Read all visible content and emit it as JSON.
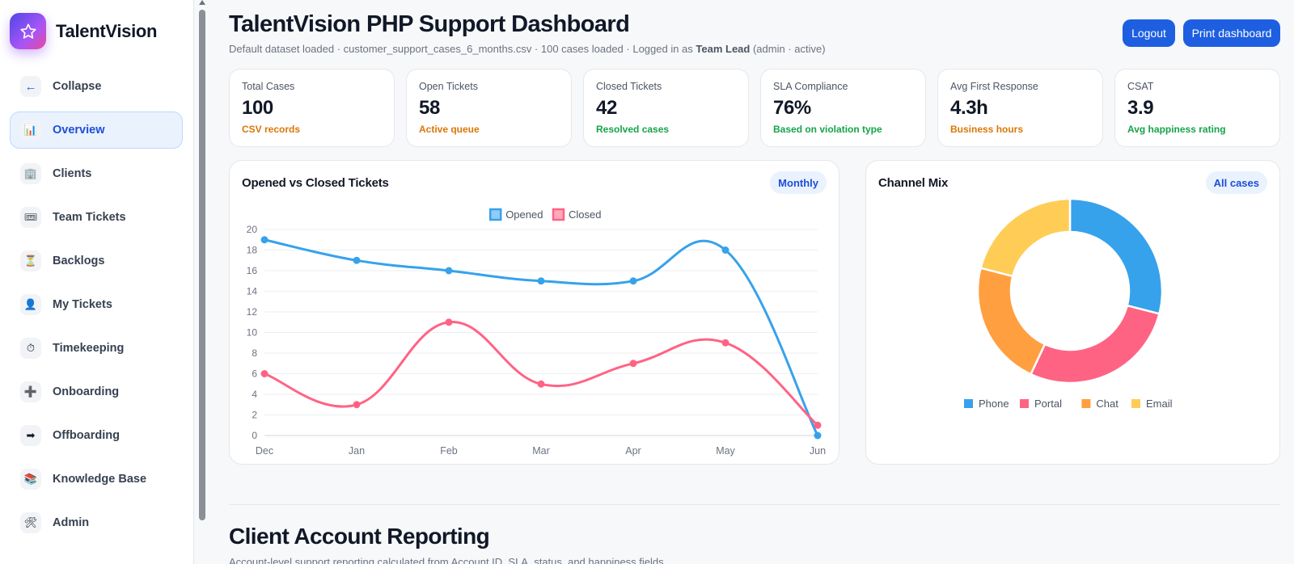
{
  "app": {
    "name": "TalentVision"
  },
  "sidebar": {
    "items": [
      {
        "label": "Collapse",
        "icon": "arrow-left-icon",
        "glyph": "←",
        "color": "#2563eb",
        "active": false
      },
      {
        "label": "Overview",
        "icon": "bar-chart-icon",
        "glyph": "📊",
        "active": true
      },
      {
        "label": "Clients",
        "icon": "building-icon",
        "glyph": "🏢",
        "active": false
      },
      {
        "label": "Team Tickets",
        "icon": "ticket-icon",
        "glyph": "🎟",
        "active": false
      },
      {
        "label": "Backlogs",
        "icon": "hourglass-icon",
        "glyph": "⏳",
        "active": false
      },
      {
        "label": "My Tickets",
        "icon": "user-icon",
        "glyph": "👤",
        "active": false
      },
      {
        "label": "Timekeeping",
        "icon": "stopwatch-icon",
        "glyph": "⏱",
        "active": false
      },
      {
        "label": "Onboarding",
        "icon": "plus-icon",
        "glyph": "➕",
        "active": false
      },
      {
        "label": "Offboarding",
        "icon": "arrow-right-icon",
        "glyph": "➡",
        "active": false
      },
      {
        "label": "Knowledge Base",
        "icon": "books-icon",
        "glyph": "📚",
        "active": false
      },
      {
        "label": "Admin",
        "icon": "tools-icon",
        "glyph": "🛠",
        "active": false
      }
    ]
  },
  "header": {
    "title": "TalentVision PHP Support Dashboard",
    "subtitle_prefix": "Default dataset loaded · customer_support_cases_6_months.csv · 100 cases loaded · Logged in as ",
    "user_role": "Team Lead",
    "subtitle_suffix": " (admin · active)",
    "logout_label": "Logout",
    "print_label": "Print dashboard"
  },
  "kpis": [
    {
      "label": "Total Cases",
      "value": "100",
      "note": "CSV records",
      "note_color": "#d97706"
    },
    {
      "label": "Open Tickets",
      "value": "58",
      "note": "Active queue",
      "note_color": "#d97706"
    },
    {
      "label": "Closed Tickets",
      "value": "42",
      "note": "Resolved cases",
      "note_color": "#16a34a"
    },
    {
      "label": "SLA Compliance",
      "value": "76%",
      "note": "Based on violation type",
      "note_color": "#16a34a"
    },
    {
      "label": "Avg First Response",
      "value": "4.3h",
      "note": "Business hours",
      "note_color": "#d97706"
    },
    {
      "label": "CSAT",
      "value": "3.9",
      "note": "Avg happiness rating",
      "note_color": "#16a34a"
    }
  ],
  "line_card": {
    "title": "Opened vs Closed Tickets",
    "pill": "Monthly"
  },
  "pie_card": {
    "title": "Channel Mix",
    "pill": "All cases"
  },
  "section": {
    "title": "Client Account Reporting",
    "subtitle": "Account-level support reporting calculated from Account ID, SLA, status, and happiness fields."
  },
  "chart_data": [
    {
      "type": "line",
      "x": [
        "Dec",
        "Jan",
        "Feb",
        "Mar",
        "Apr",
        "May",
        "Jun"
      ],
      "series": [
        {
          "name": "Opened",
          "values": [
            19,
            17,
            16,
            15,
            15,
            18,
            0
          ],
          "color": "#36a2eb"
        },
        {
          "name": "Closed",
          "values": [
            6,
            3,
            11,
            5,
            7,
            9,
            1
          ],
          "color": "#ff6384"
        }
      ],
      "ylim": [
        0,
        20
      ],
      "yticks": [
        0,
        2,
        4,
        6,
        8,
        10,
        12,
        14,
        16,
        18,
        20
      ],
      "legend": "top-center",
      "grid": true
    },
    {
      "type": "pie",
      "donut": true,
      "categories": [
        "Phone",
        "Portal",
        "Chat",
        "Email"
      ],
      "values": [
        29,
        28,
        22,
        21
      ],
      "colors": [
        "#36a2eb",
        "#ff6384",
        "#ff9f40",
        "#ffcd56"
      ],
      "legend": "bottom"
    }
  ]
}
